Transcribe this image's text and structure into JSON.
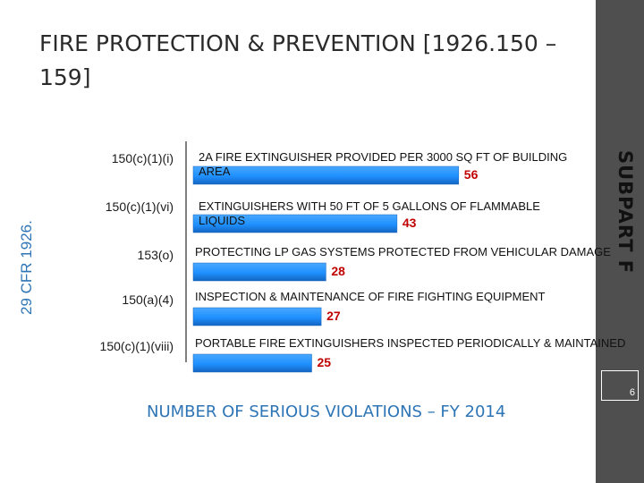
{
  "slide": {
    "title": "FIRE PROTECTION & PREVENTION [1926.150 – 159]",
    "subpart_label": "SUBPART F",
    "cfr_label": "29 CFR 1926.",
    "page_number": "6"
  },
  "chart_data": {
    "type": "bar",
    "orientation": "horizontal",
    "categories": [
      "150(c)(1)(i)",
      "150(c)(1)(vi)",
      "153(o)",
      "150(a)(4)",
      "150(c)(1)(viii)"
    ],
    "descriptions": [
      "2A FIRE EXTINGUISHER PROVIDED PER 3000 SQ FT OF BUILDING AREA",
      "EXTINGUISHERS WITH 50 FT OF 5 GALLONS OF FLAMMABLE LIQUIDS",
      "PROTECTING LP GAS SYSTEMS PROTECTED FROM VEHICULAR DAMAGE",
      "INSPECTION & MAINTENANCE OF FIRE FIGHTING EQUIPMENT",
      "PORTABLE FIRE EXTINGUISHERS INSPECTED PERIODICALLY & MAINTAINED"
    ],
    "values": [
      56,
      43,
      28,
      27,
      25
    ],
    "xlabel": "NUMBER OF SERIOUS VIOLATIONS – FY 2014",
    "ylabel": "",
    "grid": false,
    "legend": "none",
    "colors": {
      "bar": "#1e90ff",
      "bar_dark": "#1565c0",
      "value": "#c00000",
      "axis": "#7f7f7f"
    }
  }
}
